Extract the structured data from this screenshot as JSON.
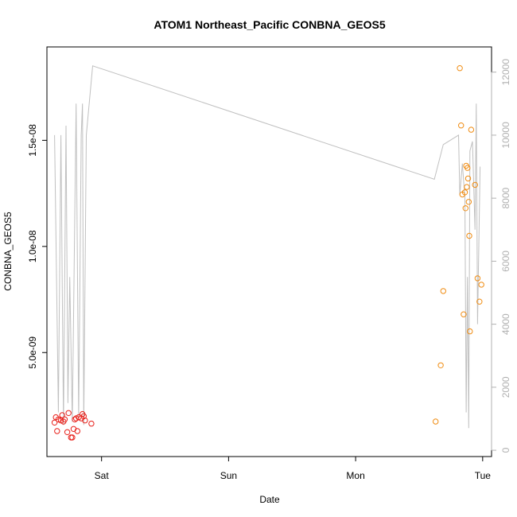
{
  "chart_data": {
    "type": "scatter",
    "title": "ATOM1 Northeast_Pacific CONBNA_GEOS5",
    "xlabel": "Date",
    "ylabel": "CONBNA_GEOS5",
    "x_ticks": [
      {
        "label": "Sat",
        "value": 1.0
      },
      {
        "label": "Sun",
        "value": 2.0
      },
      {
        "label": "Mon",
        "value": 3.0
      },
      {
        "label": "Tue",
        "value": 4.0
      }
    ],
    "xlim": [
      0.57,
      4.07
    ],
    "ylim": [
      1e-10,
      1.94e-08
    ],
    "y_ticks": [
      {
        "label": "5.0e-09",
        "value": 5e-09
      },
      {
        "label": "1.0e-08",
        "value": 1e-08
      },
      {
        "label": "1.5e-08",
        "value": 1.5e-08
      }
    ],
    "y2lim": [
      -200,
      12800
    ],
    "y2_ticks": [
      {
        "label": "0",
        "value": 0
      },
      {
        "label": "2000",
        "value": 2000
      },
      {
        "label": "4000",
        "value": 4000
      },
      {
        "label": "6000",
        "value": 6000
      },
      {
        "label": "8000",
        "value": 8000
      },
      {
        "label": "10000",
        "value": 10000
      },
      {
        "label": "12000",
        "value": 12000
      }
    ],
    "colors": {
      "red_points": "#e8211b",
      "orange_points": "#f08c12",
      "line": "#c0c0c0",
      "axis": "#000000",
      "right_axis": "#b0b0b0"
    },
    "series": [
      {
        "marker": "circle-open",
        "color": "#e8211b",
        "points": [
          [
            0.63,
            1.7e-09
          ],
          [
            0.64,
            1.95e-09
          ],
          [
            0.65,
            1.3e-09
          ],
          [
            0.66,
            1.85e-09
          ],
          [
            0.68,
            1.8e-09
          ],
          [
            0.69,
            2.05e-09
          ],
          [
            0.7,
            1.75e-09
          ],
          [
            0.71,
            1.85e-09
          ],
          [
            0.73,
            1.25e-09
          ],
          [
            0.74,
            2.15e-09
          ],
          [
            0.76,
            1e-09
          ],
          [
            0.77,
            1e-09
          ],
          [
            0.78,
            1.4e-09
          ],
          [
            0.79,
            1.85e-09
          ],
          [
            0.8,
            1.9e-09
          ],
          [
            0.81,
            1.3e-09
          ],
          [
            0.82,
            1.95e-09
          ],
          [
            0.84,
            1.9e-09
          ],
          [
            0.85,
            2.1e-09
          ],
          [
            0.86,
            2e-09
          ],
          [
            0.87,
            1.8e-09
          ],
          [
            0.92,
            1.65e-09
          ]
        ]
      },
      {
        "marker": "circle-open",
        "color": "#f08c12",
        "points": [
          [
            3.63,
            1.75e-09
          ],
          [
            3.67,
            4.4e-09
          ],
          [
            3.69,
            7.9e-09
          ],
          [
            3.82,
            1.84e-08
          ],
          [
            3.83,
            1.57e-08
          ],
          [
            3.84,
            1.245e-08
          ],
          [
            3.86,
            1.255e-08
          ],
          [
            3.865,
            1.18e-08
          ],
          [
            3.87,
            1.38e-08
          ],
          [
            3.875,
            1.28e-08
          ],
          [
            3.88,
            1.37e-08
          ],
          [
            3.885,
            1.32e-08
          ],
          [
            3.89,
            1.21e-08
          ],
          [
            3.895,
            1.05e-08
          ],
          [
            3.9,
            6e-09
          ],
          [
            3.85,
            6.8e-09
          ],
          [
            3.91,
            1.55e-08
          ],
          [
            3.94,
            1.29e-08
          ],
          [
            3.96,
            8.5e-09
          ],
          [
            3.975,
            7.4e-09
          ],
          [
            3.99,
            8.2e-09
          ]
        ]
      },
      {
        "type": "line",
        "axis": "right",
        "color": "#c0c0c0",
        "points": [
          [
            0.63,
            10000
          ],
          [
            0.66,
            1200
          ],
          [
            0.68,
            10000
          ],
          [
            0.7,
            800
          ],
          [
            0.72,
            10300
          ],
          [
            0.735,
            1500
          ],
          [
            0.75,
            5500
          ],
          [
            0.77,
            900
          ],
          [
            0.8,
            11000
          ],
          [
            0.82,
            1000
          ],
          [
            0.84,
            10000
          ],
          [
            0.85,
            11000
          ],
          [
            0.86,
            800
          ],
          [
            0.88,
            10000
          ],
          [
            0.93,
            12200
          ],
          [
            3.62,
            8600
          ],
          [
            3.69,
            9700
          ],
          [
            3.81,
            10000
          ],
          [
            3.82,
            8100
          ],
          [
            3.84,
            9100
          ],
          [
            3.86,
            8000
          ],
          [
            3.87,
            1200
          ],
          [
            3.88,
            5500
          ],
          [
            3.89,
            700
          ],
          [
            3.9,
            9500
          ],
          [
            3.92,
            9800
          ],
          [
            3.94,
            7000
          ],
          [
            3.95,
            11000
          ],
          [
            3.96,
            4000
          ],
          [
            3.98,
            9000
          ]
        ]
      }
    ],
    "grid": false,
    "legend": "none"
  }
}
